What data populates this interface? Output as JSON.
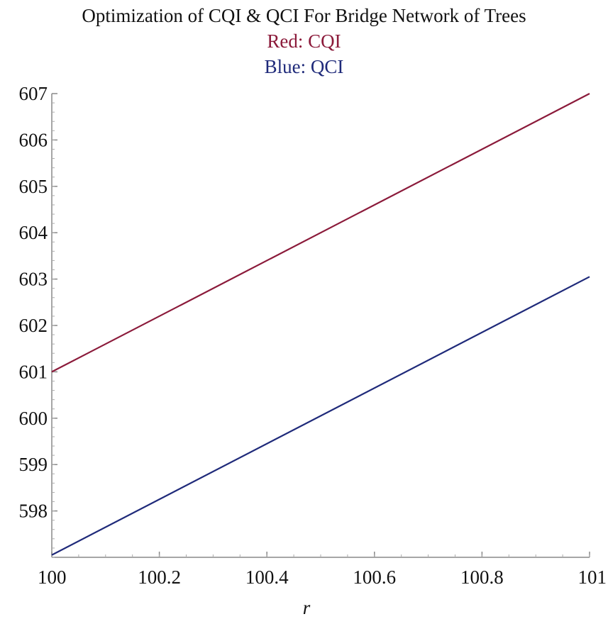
{
  "chart_data": {
    "type": "line",
    "title": "Optimization of CQI & QCI For Bridge Network of Trees",
    "subtitle_lines": [
      {
        "text": "Red: CQI",
        "color": "#8b1a3a"
      },
      {
        "text": "Blue: QCI",
        "color": "#1f2a7a"
      }
    ],
    "xlabel": "r",
    "ylabel": "",
    "xlim": [
      100,
      101
    ],
    "ylim": [
      597,
      607
    ],
    "x_ticks": [
      100,
      100.2,
      100.4,
      100.6,
      100.8,
      101
    ],
    "x_tick_labels": [
      "100",
      "100.2",
      "100.4",
      "100.6",
      "100.8",
      "101"
    ],
    "y_ticks": [
      598,
      599,
      600,
      601,
      602,
      603,
      604,
      605,
      606,
      607
    ],
    "y_tick_labels": [
      "598",
      "599",
      "600",
      "601",
      "602",
      "603",
      "604",
      "605",
      "606",
      "607"
    ],
    "grid": false,
    "series": [
      {
        "name": "CQI",
        "color": "#8b1a3a",
        "x": [
          100,
          101
        ],
        "y": [
          601,
          607
        ]
      },
      {
        "name": "QCI",
        "color": "#1f2a7a",
        "x": [
          100,
          101
        ],
        "y": [
          597.05,
          603.05
        ]
      }
    ]
  }
}
